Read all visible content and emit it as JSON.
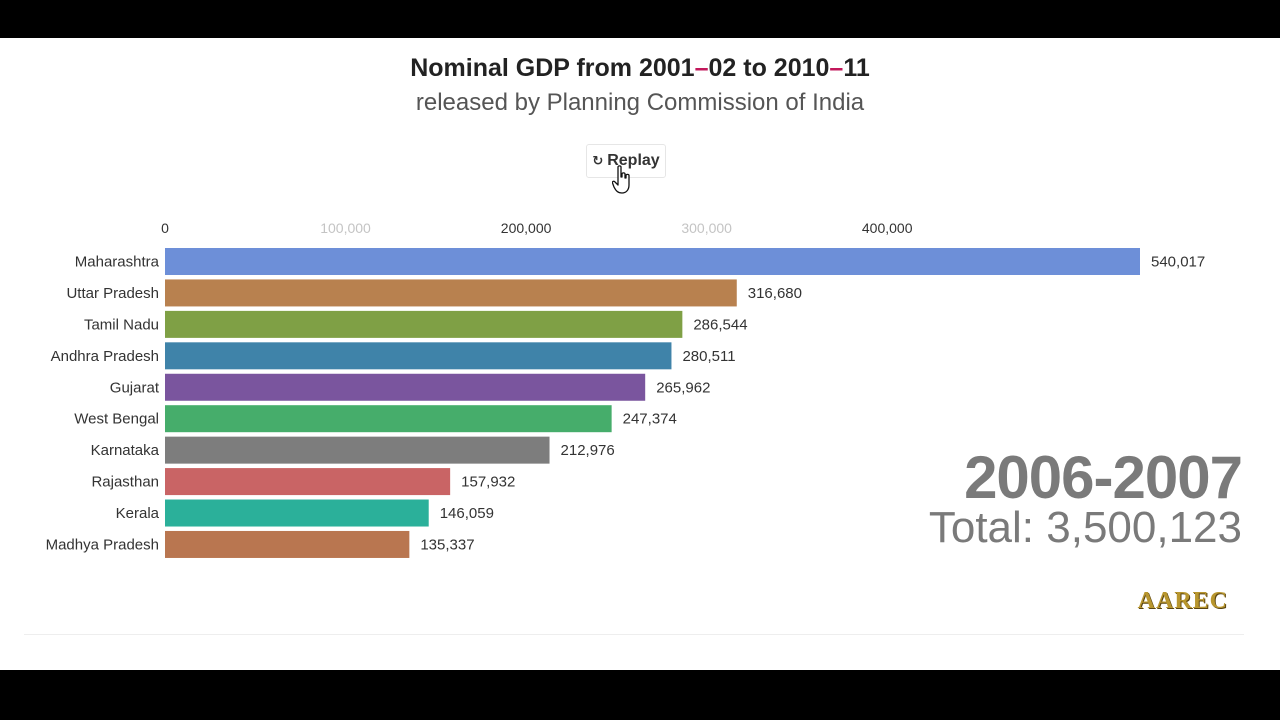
{
  "header": {
    "title_part1": "Nominal GDP from 2001",
    "title_dash1": "–",
    "title_part2": "02 to 2010",
    "title_dash2": "–",
    "title_part3": "11",
    "subtitle": "released by Planning Commission of India"
  },
  "controls": {
    "replay_icon": "↻",
    "replay_label": "Replay"
  },
  "chart_data": {
    "type": "bar",
    "orientation": "horizontal",
    "categories": [
      "Maharashtra",
      "Uttar Pradesh",
      "Tamil Nadu",
      "Andhra Pradesh",
      "Gujarat",
      "West Bengal",
      "Karnataka",
      "Rajasthan",
      "Kerala",
      "Madhya Pradesh"
    ],
    "values": [
      540017,
      316680,
      286544,
      280511,
      265962,
      247374,
      212976,
      157932,
      146059,
      135337
    ],
    "value_labels": [
      "540,017",
      "316,680",
      "286,544",
      "280,511",
      "265,962",
      "247,374",
      "212,976",
      "157,932",
      "146,059",
      "135,337"
    ],
    "colors": [
      "#6d8fd8",
      "#b8814f",
      "#7fa045",
      "#3f83a9",
      "#7a559e",
      "#46ad6b",
      "#7d7d7d",
      "#c96465",
      "#2bb09a",
      "#b97650"
    ],
    "x_ticks": [
      0,
      100000,
      200000,
      300000,
      400000
    ],
    "x_tick_labels": [
      "0",
      "100,000",
      "200,000",
      "300,000",
      "400,000"
    ],
    "x_tick_colors": [
      "#333333",
      "#c4c4c4",
      "#333333",
      "#c4c4c4",
      "#333333"
    ],
    "xlim": [
      0,
      540017
    ],
    "grid": false,
    "legend": "none"
  },
  "overlay": {
    "year": "2006-2007",
    "total": "Total: 3,500,123",
    "brand": "AAREC"
  }
}
